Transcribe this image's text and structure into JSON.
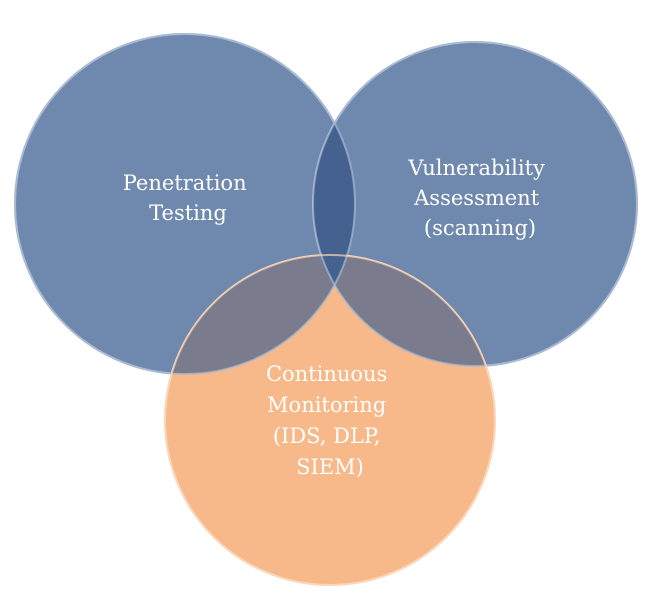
{
  "diagram": {
    "circles": [
      {
        "id": "penetration-testing",
        "lines": [
          "Penetration",
          "Testing"
        ],
        "fill": "#6f88ad",
        "stroke": "#a9bad2"
      },
      {
        "id": "vulnerability-assessment",
        "lines": [
          "Vulnerability",
          "Assessment",
          "(scanning)"
        ],
        "fill": "#6f88ad",
        "stroke": "#a9bad2"
      },
      {
        "id": "continuous-monitoring",
        "lines": [
          "Continuous",
          "Monitoring",
          "(IDS, DLP,",
          "SIEM)"
        ],
        "fill": "#f7b98a",
        "stroke": "#fbd5b8"
      }
    ]
  }
}
